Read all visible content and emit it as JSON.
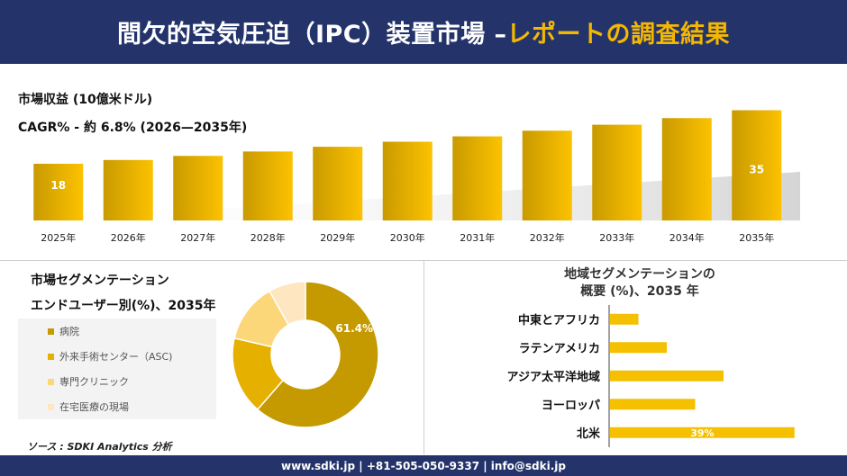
{
  "header": {
    "title_main": "間欠的空気圧迫（IPC）装置市場 –",
    "title_accent": "レポートの調査結果"
  },
  "market": {
    "revenue_label": "市場収益 (10億米ドル)",
    "cagr_label": "CAGR% - 約 6.8% (2026—2035年)"
  },
  "segment": {
    "title_line1": "市場セグメンテーション",
    "title_line2": "エンドユーザー別(%)、2035年"
  },
  "region": {
    "title_line1": "地域セグメンテーションの",
    "title_line2": "概要 (%)、2035 年"
  },
  "source": "ソース : SDKI Analytics 分析",
  "footer": {
    "text": "www.sdki.jp | +81-505-050-9337 | info@sdki.jp"
  },
  "colors": {
    "navy": "#24346b",
    "gold": "#f5b800",
    "bar_start": "#c99a00",
    "bar_end": "#fcc200"
  },
  "chart_data": [
    {
      "type": "bar",
      "categories": [
        "2025年",
        "2026年",
        "2027年",
        "2028年",
        "2029年",
        "2030年",
        "2031年",
        "2032年",
        "2033年",
        "2034年",
        "2035年"
      ],
      "values": [
        18,
        19.2,
        20.5,
        21.9,
        23.4,
        25,
        26.7,
        28.5,
        30.4,
        32.5,
        35
      ],
      "data_labels": {
        "0": "18",
        "10": "35"
      },
      "ylim": [
        0,
        40
      ]
    },
    {
      "type": "pie",
      "categories": [
        "病院",
        "外来手術センター（ASC)",
        "専門クリニック",
        "在宅医療の現場"
      ],
      "values": [
        61.4,
        17.2,
        13.2,
        8.2
      ],
      "colors": [
        "#c49a00",
        "#e5b000",
        "#fcd77a",
        "#fde6c0"
      ],
      "data_labels": {
        "0": "61.4%"
      }
    },
    {
      "type": "bar",
      "orientation": "horizontal",
      "categories": [
        "中東とアフリカ",
        "ラテンアメリカ",
        "アジア太平洋地域",
        "ヨーロッパ",
        "北米"
      ],
      "values": [
        6,
        12,
        24,
        18,
        39
      ],
      "data_labels": {
        "4": "39%"
      },
      "xlim": [
        0,
        40
      ]
    }
  ]
}
